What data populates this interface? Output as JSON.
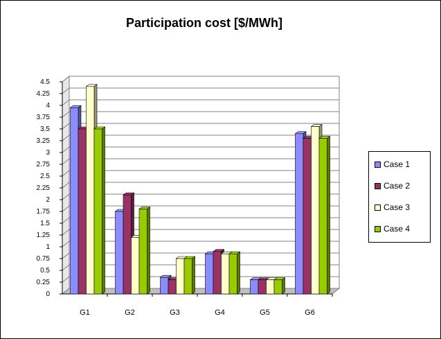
{
  "chart_data": {
    "type": "bar",
    "title": "Participation cost [$/MWh]",
    "xlabel": "",
    "ylabel": "",
    "categories": [
      "G1",
      "G2",
      "G3",
      "G4",
      "G5",
      "G6"
    ],
    "series": [
      {
        "name": "Case 1",
        "color": "#8c8cff",
        "values": [
          3.95,
          1.75,
          0.35,
          0.85,
          0.3,
          3.4
        ]
      },
      {
        "name": "Case 2",
        "color": "#993366",
        "values": [
          3.5,
          2.1,
          0.3,
          0.9,
          0.3,
          3.3
        ]
      },
      {
        "name": "Case 3",
        "color": "#ffffcc",
        "values": [
          4.4,
          1.2,
          0.75,
          0.85,
          0.3,
          3.55
        ]
      },
      {
        "name": "Case 4",
        "color": "#99cc00",
        "values": [
          3.5,
          1.8,
          0.75,
          0.85,
          0.3,
          3.3
        ]
      }
    ],
    "ylim": [
      0,
      4.5
    ],
    "yticks": [
      "0",
      "0.25",
      "0.5",
      "0.75",
      "1",
      "1.25",
      "1.5",
      "1.75",
      "2",
      "2.25",
      "2.5",
      "2.75",
      "3",
      "3.25",
      "3.5",
      "3.75",
      "4",
      "4.25",
      "4.5"
    ],
    "grid": true,
    "legend": "right",
    "style": "3d-clustered-column"
  }
}
